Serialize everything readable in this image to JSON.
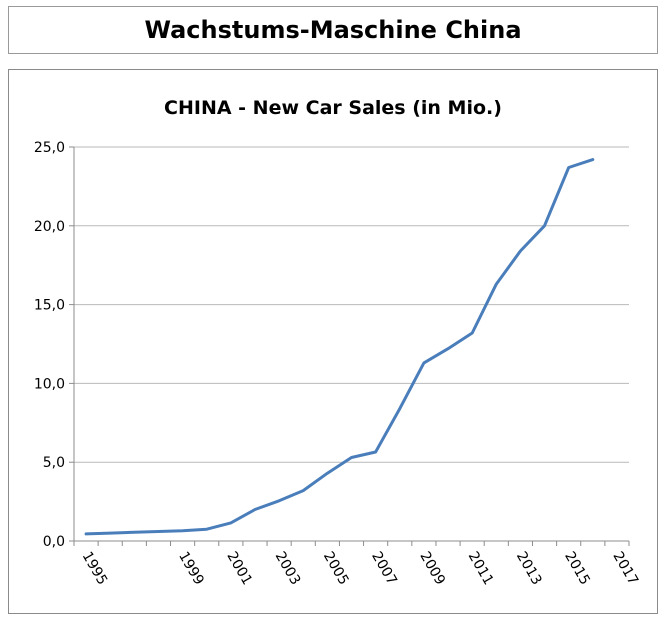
{
  "header": {
    "title": "Wachstums-Maschine China"
  },
  "chart_data": {
    "type": "line",
    "title": "CHINA - New Car Sales (in Mio.)",
    "xlabel": "",
    "ylabel": "",
    "ylim": [
      0,
      25
    ],
    "y_ticks": [
      "0,0",
      "5,0",
      "10,0",
      "15,0",
      "20,0",
      "25,0"
    ],
    "grid": true,
    "x": [
      1995,
      1996,
      1997,
      1998,
      1999,
      2000,
      2001,
      2002,
      2003,
      2004,
      2005,
      2006,
      2007,
      2008,
      2009,
      2010,
      2011,
      2012,
      2013,
      2014,
      2015,
      2016,
      2017
    ],
    "x_tick_labels": [
      "1995",
      "1999",
      "2001",
      "2003",
      "2005",
      "2007",
      "2009",
      "2011",
      "2013",
      "2015",
      "2017"
    ],
    "series": [
      {
        "color": "#4a7ebb",
        "values": [
          0.45,
          0.5,
          0.55,
          0.6,
          0.65,
          0.75,
          1.15,
          2.0,
          2.55,
          3.2,
          4.3,
          5.3,
          5.65,
          8.4,
          11.3,
          12.2,
          13.2,
          16.3,
          18.4,
          20.0,
          23.7,
          24.2,
          null
        ]
      }
    ]
  }
}
